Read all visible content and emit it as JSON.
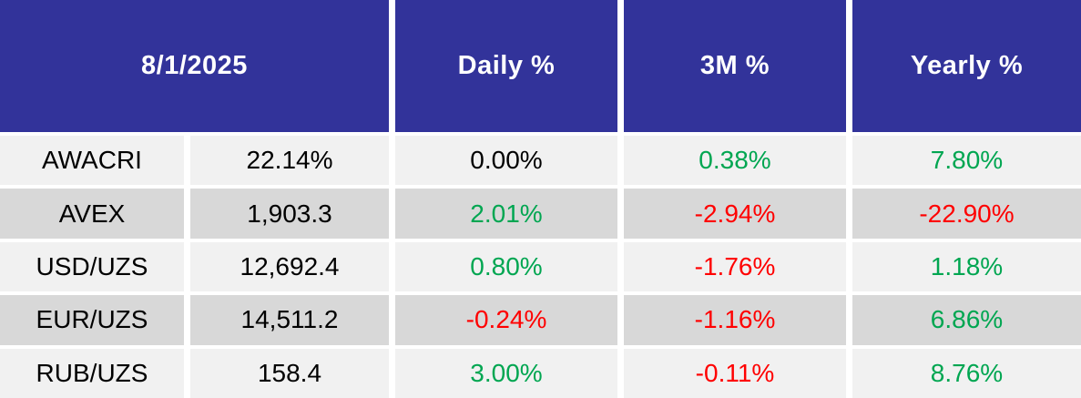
{
  "colors": {
    "header_bg": "#32339A",
    "header_text": "#FFFFFF",
    "row_light": "#F1F1F1",
    "row_dark": "#D8D8D8",
    "positive": "#00A651",
    "negative": "#FF0000",
    "neutral": "#000000"
  },
  "table": {
    "header": {
      "date": "8/1/2025",
      "daily": "Daily %",
      "m3": "3M %",
      "yearly": "Yearly %"
    },
    "rows": [
      {
        "label": "AWACRI",
        "value": "22.14%",
        "daily": "0.00%",
        "daily_color": "neutral",
        "m3": "0.38%",
        "m3_color": "positive",
        "yearly": "7.80%",
        "yearly_color": "positive"
      },
      {
        "label": "AVEX",
        "value": "1,903.3",
        "daily": "2.01%",
        "daily_color": "positive",
        "m3": "-2.94%",
        "m3_color": "negative",
        "yearly": "-22.90%",
        "yearly_color": "negative"
      },
      {
        "label": "USD/UZS",
        "value": "12,692.4",
        "daily": "0.80%",
        "daily_color": "positive",
        "m3": "-1.76%",
        "m3_color": "negative",
        "yearly": "1.18%",
        "yearly_color": "positive"
      },
      {
        "label": "EUR/UZS",
        "value": "14,511.2",
        "daily": "-0.24%",
        "daily_color": "negative",
        "m3": "-1.16%",
        "m3_color": "negative",
        "yearly": "6.86%",
        "yearly_color": "positive"
      },
      {
        "label": "RUB/UZS",
        "value": "158.4",
        "daily": "3.00%",
        "daily_color": "positive",
        "m3": "-0.11%",
        "m3_color": "negative",
        "yearly": "8.76%",
        "yearly_color": "positive"
      }
    ]
  },
  "chart_data": {
    "type": "table",
    "title": "8/1/2025",
    "header_cells": [
      "8/1/2025",
      "Daily %",
      "3M %",
      "Yearly %"
    ],
    "rows": [
      [
        "AWACRI",
        "22.14%",
        "0.00%",
        "0.38%",
        "7.80%"
      ],
      [
        "AVEX",
        "1,903.3",
        "2.01%",
        "-2.94%",
        "-22.90%"
      ],
      [
        "USD/UZS",
        "12,692.4",
        "0.80%",
        "-1.76%",
        "1.18%"
      ],
      [
        "EUR/UZS",
        "14,511.2",
        "-0.24%",
        "-1.16%",
        "6.86%"
      ],
      [
        "RUB/UZS",
        "158.4",
        "3.00%",
        "-0.11%",
        "8.76%"
      ]
    ],
    "value_color_coding": "green = positive change, red = negative change, black = neutral/value"
  }
}
